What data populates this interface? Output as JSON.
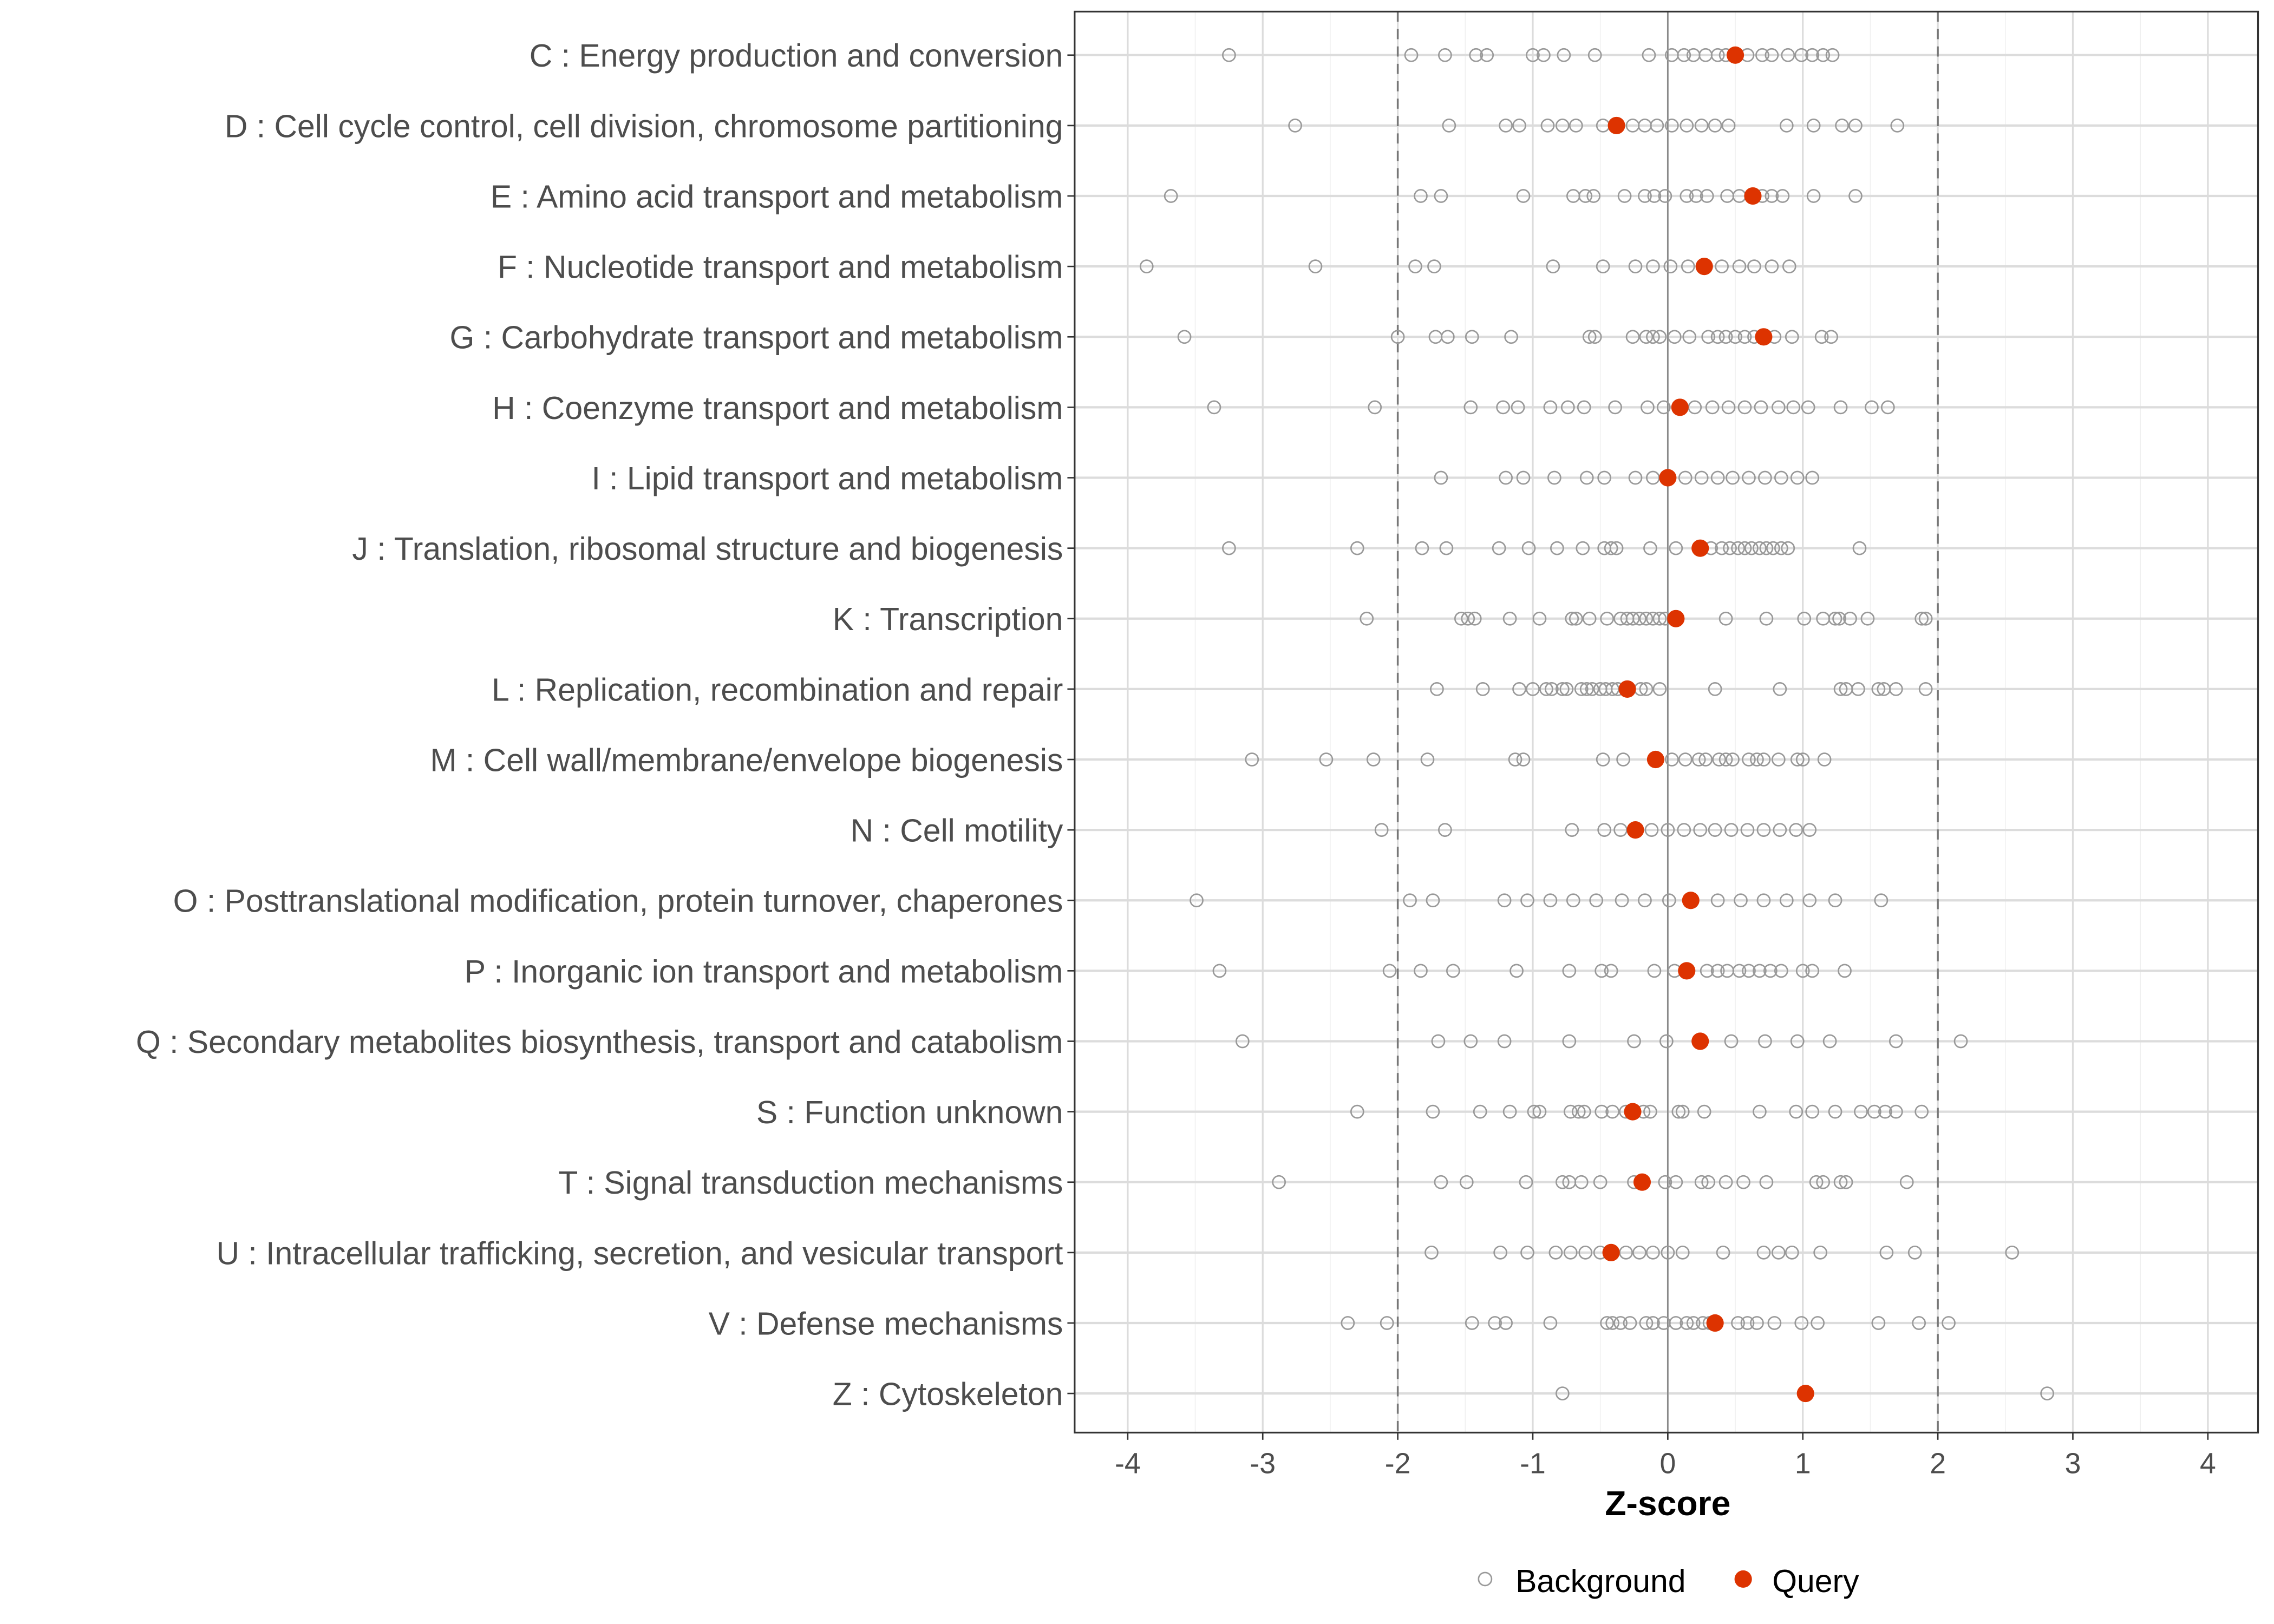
{
  "chart_data": {
    "type": "scatter",
    "xlabel": "Z-score",
    "ylabel": "",
    "xlim": [
      -4.4,
      4.4
    ],
    "xticks": [
      "-4",
      "-3",
      "-2",
      "-1",
      "0",
      "1",
      "2",
      "3",
      "4"
    ],
    "xtick_values": [
      -4,
      -3,
      -2,
      -1,
      0,
      1,
      2,
      3,
      4
    ],
    "reference_lines": {
      "dashed": [
        -2,
        2
      ],
      "solid": [
        0
      ]
    },
    "grid": true,
    "legend": {
      "placement": "bottom",
      "entries": [
        "Background",
        "Query"
      ]
    },
    "colors": {
      "background": "#999999",
      "query": "#DD3300"
    },
    "categories": [
      "C : Energy production and conversion",
      "D : Cell cycle control, cell division, chromosome partitioning",
      "E : Amino acid transport and metabolism",
      "F : Nucleotide transport and metabolism",
      "G : Carbohydrate transport and metabolism",
      "H : Coenzyme transport and metabolism",
      "I : Lipid transport and metabolism",
      "J : Translation, ribosomal structure and biogenesis",
      "K : Transcription",
      "L : Replication, recombination and repair",
      "M : Cell wall/membrane/envelope biogenesis",
      "N : Cell motility",
      "O : Posttranslational modification, protein turnover, chaperones",
      "P : Inorganic ion transport and metabolism",
      "Q : Secondary metabolites biosynthesis, transport and catabolism",
      "S : Function unknown",
      "T : Signal transduction mechanisms",
      "U : Intracellular trafficking, secretion, and vesicular transport",
      "V : Defense mechanisms",
      "Z : Cytoskeleton"
    ],
    "series": [
      {
        "name": "Query",
        "values": [
          0.5,
          -0.38,
          0.63,
          0.27,
          0.71,
          0.09,
          0.0,
          0.24,
          0.06,
          -0.3,
          -0.09,
          -0.24,
          0.17,
          0.14,
          0.24,
          -0.26,
          -0.19,
          -0.42,
          0.35,
          1.02
        ]
      },
      {
        "name": "Background",
        "values": [
          [
            -3.25,
            -1.9,
            -1.65,
            -1.42,
            -1.34,
            -1.0,
            -0.92,
            -0.77,
            -0.54,
            -0.14,
            0.03,
            0.12,
            0.19,
            0.28,
            0.37,
            0.43,
            0.59,
            0.7,
            0.77,
            0.89,
            0.99,
            1.07,
            1.15,
            1.22
          ],
          [
            -2.76,
            -1.62,
            -1.2,
            -1.1,
            -0.89,
            -0.78,
            -0.68,
            -0.48,
            -0.26,
            -0.17,
            -0.08,
            0.03,
            0.14,
            0.25,
            0.35,
            0.45,
            0.88,
            1.08,
            1.29,
            1.39,
            1.7
          ],
          [
            -3.68,
            -1.83,
            -1.68,
            -1.07,
            -0.7,
            -0.61,
            -0.55,
            -0.32,
            -0.17,
            -0.1,
            -0.02,
            0.14,
            0.21,
            0.29,
            0.44,
            0.53,
            0.7,
            0.77,
            0.85,
            1.08,
            1.39
          ],
          [
            -3.86,
            -2.61,
            -1.87,
            -1.73,
            -0.85,
            -0.48,
            -0.24,
            -0.11,
            0.02,
            0.15,
            0.4,
            0.53,
            0.64,
            0.77,
            0.9
          ],
          [
            -3.58,
            -2.0,
            -1.72,
            -1.63,
            -1.45,
            -1.16,
            -0.58,
            -0.54,
            -0.26,
            -0.16,
            -0.11,
            -0.06,
            0.05,
            0.16,
            0.3,
            0.37,
            0.43,
            0.5,
            0.57,
            0.64,
            0.79,
            0.92,
            1.14,
            1.21
          ],
          [
            -3.36,
            -2.17,
            -1.46,
            -1.22,
            -1.11,
            -0.87,
            -0.74,
            -0.62,
            -0.39,
            -0.15,
            -0.03,
            0.2,
            0.33,
            0.45,
            0.57,
            0.69,
            0.82,
            0.93,
            1.04,
            1.28,
            1.51,
            1.63
          ],
          [
            -1.68,
            -1.2,
            -1.07,
            -0.84,
            -0.6,
            -0.47,
            -0.24,
            -0.11,
            0.13,
            0.25,
            0.37,
            0.48,
            0.6,
            0.72,
            0.84,
            0.96,
            1.07
          ],
          [
            -3.25,
            -2.3,
            -1.82,
            -1.64,
            -1.25,
            -1.03,
            -0.82,
            -0.63,
            -0.47,
            -0.42,
            -0.38,
            -0.13,
            0.06,
            0.32,
            0.4,
            0.46,
            0.52,
            0.57,
            0.62,
            0.68,
            0.73,
            0.78,
            0.84,
            0.89,
            1.42
          ],
          [
            -2.23,
            -1.53,
            -1.48,
            -1.43,
            -1.17,
            -0.95,
            -0.71,
            -0.68,
            -0.58,
            -0.45,
            -0.35,
            -0.3,
            -0.26,
            -0.21,
            -0.16,
            -0.11,
            -0.06,
            -0.02,
            0.43,
            0.73,
            1.01,
            1.15,
            1.24,
            1.27,
            1.35,
            1.48,
            1.88,
            1.91
          ],
          [
            -1.71,
            -1.37,
            -1.1,
            -1.0,
            -0.9,
            -0.86,
            -0.78,
            -0.75,
            -0.64,
            -0.6,
            -0.56,
            -0.5,
            -0.46,
            -0.41,
            -0.37,
            -0.2,
            -0.16,
            -0.06,
            0.35,
            0.83,
            1.28,
            1.32,
            1.41,
            1.56,
            1.6,
            1.69,
            1.91
          ],
          [
            -3.08,
            -2.53,
            -2.18,
            -1.78,
            -1.13,
            -1.07,
            -0.48,
            -0.33,
            0.03,
            0.13,
            0.23,
            0.28,
            0.38,
            0.43,
            0.48,
            0.6,
            0.66,
            0.71,
            0.82,
            0.96,
            1.0,
            1.16
          ],
          [
            -2.12,
            -1.65,
            -0.71,
            -0.47,
            -0.35,
            -0.12,
            0.0,
            0.12,
            0.24,
            0.35,
            0.47,
            0.59,
            0.71,
            0.83,
            0.95,
            1.05
          ],
          [
            -3.49,
            -1.91,
            -1.74,
            -1.21,
            -1.04,
            -0.87,
            -0.7,
            -0.53,
            -0.34,
            -0.17,
            0.01,
            0.37,
            0.54,
            0.71,
            0.88,
            1.05,
            1.24,
            1.58
          ],
          [
            -3.32,
            -2.06,
            -1.83,
            -1.59,
            -1.12,
            -0.73,
            -0.49,
            -0.42,
            -0.1,
            0.05,
            0.29,
            0.37,
            0.44,
            0.53,
            0.6,
            0.68,
            0.76,
            0.84,
            1.0,
            1.07,
            1.31
          ],
          [
            -3.15,
            -1.7,
            -1.46,
            -1.21,
            -0.73,
            -0.25,
            -0.01,
            0.47,
            0.72,
            0.96,
            1.2,
            1.69,
            2.17
          ],
          [
            -2.3,
            -1.74,
            -1.39,
            -1.17,
            -0.99,
            -0.95,
            -0.72,
            -0.66,
            -0.62,
            -0.49,
            -0.41,
            -0.31,
            -0.18,
            -0.13,
            0.08,
            0.11,
            0.27,
            0.68,
            0.95,
            1.07,
            1.24,
            1.43,
            1.53,
            1.61,
            1.69,
            1.88
          ],
          [
            -2.88,
            -1.68,
            -1.49,
            -1.05,
            -0.78,
            -0.73,
            -0.64,
            -0.5,
            -0.25,
            -0.02,
            0.06,
            0.25,
            0.3,
            0.43,
            0.56,
            0.73,
            1.1,
            1.15,
            1.28,
            1.32,
            1.77
          ],
          [
            -1.75,
            -1.24,
            -1.04,
            -0.83,
            -0.72,
            -0.61,
            -0.5,
            -0.31,
            -0.21,
            -0.11,
            0.0,
            0.11,
            0.41,
            0.71,
            0.82,
            0.92,
            1.13,
            1.62,
            1.83,
            2.55
          ],
          [
            -2.37,
            -2.08,
            -1.45,
            -1.28,
            -1.2,
            -0.87,
            -0.45,
            -0.41,
            -0.35,
            -0.28,
            -0.16,
            -0.11,
            -0.03,
            0.06,
            0.14,
            0.19,
            0.26,
            0.31,
            0.52,
            0.59,
            0.66,
            0.79,
            0.99,
            1.11,
            1.56,
            1.86,
            2.08
          ],
          [
            -0.78,
            2.81
          ]
        ]
      }
    ]
  }
}
